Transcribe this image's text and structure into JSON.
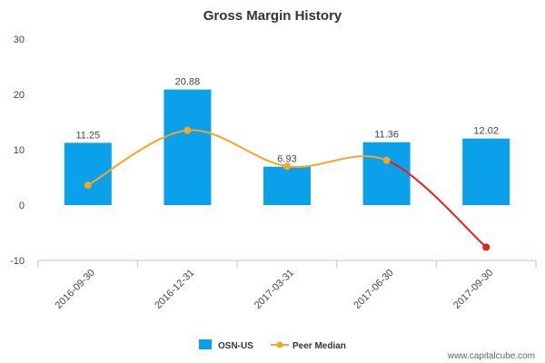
{
  "chart_data": {
    "type": "bar",
    "title": "Gross Margin History",
    "categories": [
      "2016-09-30",
      "2016-12-31",
      "2017-03-31",
      "2017-06-30",
      "2017-09-30"
    ],
    "series": [
      {
        "name": "OSN-US",
        "kind": "bar",
        "values": [
          11.25,
          20.88,
          6.93,
          11.36,
          12.02
        ],
        "labels": [
          "11.25",
          "20.88",
          "6.93",
          "11.36",
          "12.02"
        ],
        "color": "#0aa0ea"
      },
      {
        "name": "Peer Median",
        "kind": "line",
        "values": [
          3.6,
          13.5,
          7.0,
          8.1,
          -7.6
        ],
        "color": "#f5a623",
        "last_segment_color": "#ee1c1c"
      }
    ],
    "y_ticks": [
      "30",
      "20",
      "10",
      "0",
      "-10"
    ],
    "ylim": [
      -10,
      30
    ],
    "xlabel": "",
    "ylabel": "",
    "grid": false,
    "legend_position": "bottom-center"
  },
  "watermark": "www.capitalcube.com"
}
